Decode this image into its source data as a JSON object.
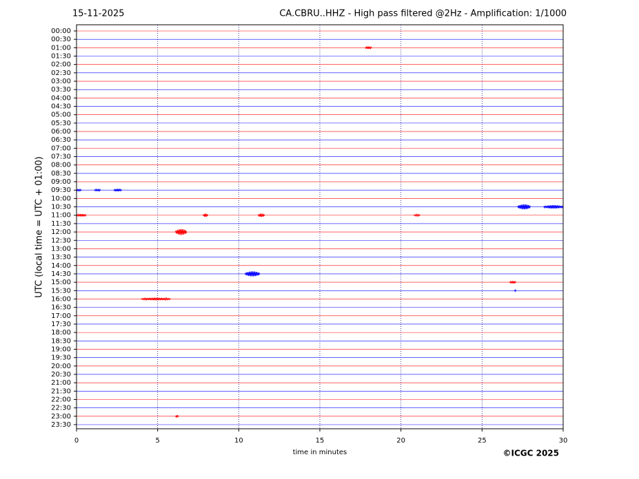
{
  "chart_data": {
    "type": "helicorder",
    "date": "15-11-2025",
    "title": "CA.CBRU..HHZ - High pass filtered @2Hz - Amplification: 1/1000",
    "xlabel": "time in minutes",
    "ylabel": "UTC (local time = UTC + 01:00)",
    "copyright": "©ICGC 2025",
    "categories": [
      "00:00",
      "00:30",
      "01:00",
      "01:30",
      "02:00",
      "02:30",
      "03:00",
      "03:30",
      "04:00",
      "04:30",
      "05:00",
      "05:30",
      "06:00",
      "06:30",
      "07:00",
      "07:30",
      "08:00",
      "08:30",
      "09:00",
      "09:30",
      "10:00",
      "10:30",
      "11:00",
      "11:30",
      "12:00",
      "12:30",
      "13:00",
      "13:30",
      "14:00",
      "14:30",
      "15:00",
      "15:30",
      "16:00",
      "16:30",
      "17:00",
      "17:30",
      "18:00",
      "18:30",
      "19:00",
      "19:30",
      "20:00",
      "20:30",
      "21:00",
      "21:30",
      "22:00",
      "22:30",
      "23:00",
      "23:30"
    ],
    "row_colors": [
      "#ff0000",
      "#0000ff"
    ],
    "xlim": [
      0,
      30
    ],
    "xticks": [
      0,
      5,
      10,
      15,
      20,
      25,
      30
    ],
    "grid": true,
    "bursts": [
      {
        "row": 2,
        "x": [
          17.8,
          18.2
        ],
        "amplitude": 0.15
      },
      {
        "row": 19,
        "x": [
          0,
          0.3
        ],
        "amplitude": 0.12
      },
      {
        "row": 19,
        "x": [
          1.1,
          1.5
        ],
        "amplitude": 0.12
      },
      {
        "row": 19,
        "x": [
          2.3,
          2.8
        ],
        "amplitude": 0.15
      },
      {
        "row": 21,
        "x": [
          27.2,
          28
        ],
        "amplitude": 0.3
      },
      {
        "row": 21,
        "x": [
          28.8,
          30
        ],
        "amplitude": 0.2
      },
      {
        "row": 22,
        "x": [
          0,
          0.6
        ],
        "amplitude": 0.15
      },
      {
        "row": 22,
        "x": [
          7.8,
          8.1
        ],
        "amplitude": 0.2
      },
      {
        "row": 22,
        "x": [
          11.2,
          11.6
        ],
        "amplitude": 0.2
      },
      {
        "row": 22,
        "x": [
          20.8,
          21.2
        ],
        "amplitude": 0.1
      },
      {
        "row": 24,
        "x": [
          6.1,
          6.8
        ],
        "amplitude": 0.35
      },
      {
        "row": 29,
        "x": [
          10.4,
          11.3
        ],
        "amplitude": 0.3
      },
      {
        "row": 30,
        "x": [
          26.7,
          27.1
        ],
        "amplitude": 0.15
      },
      {
        "row": 31,
        "x": [
          27,
          27.1
        ],
        "amplitude": 0.15
      },
      {
        "row": 32,
        "x": [
          4,
          5.8
        ],
        "amplitude": 0.15
      },
      {
        "row": 46,
        "x": [
          6.1,
          6.3
        ],
        "amplitude": 0.15
      }
    ]
  }
}
